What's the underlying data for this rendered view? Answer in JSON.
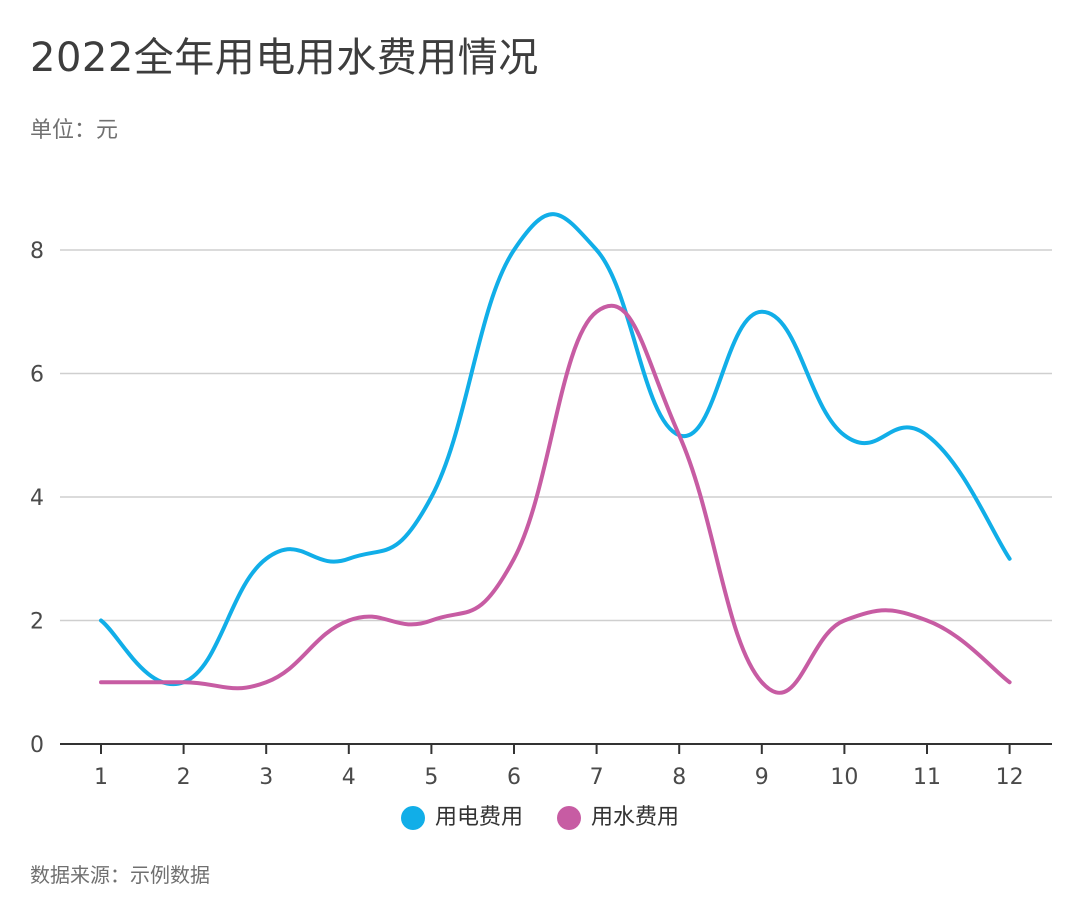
{
  "chart": {
    "title": "2022全年用电用水费用情况",
    "subtitle": "单位：元",
    "source": "数据来源：示例数据"
  },
  "chart_data": {
    "type": "line",
    "title": "2022全年用电用水费用情况",
    "subtitle": "单位：元",
    "categories": [
      "1",
      "2",
      "3",
      "4",
      "5",
      "6",
      "7",
      "8",
      "9",
      "10",
      "11",
      "12"
    ],
    "series": [
      {
        "name": "用电费用",
        "color": "#11aee8",
        "values": [
          2,
          1,
          3,
          3,
          4,
          8,
          8,
          5,
          7,
          5,
          5,
          3
        ]
      },
      {
        "name": "用水费用",
        "color": "#c75ca3",
        "values": [
          1,
          1,
          1,
          2,
          2,
          3,
          7,
          5,
          1,
          2,
          2,
          1
        ]
      }
    ],
    "yTicks": [
      0,
      2,
      4,
      6,
      8
    ],
    "ylim": [
      0,
      9
    ],
    "grid": true,
    "legend": "bottom",
    "source": "数据来源：示例数据"
  }
}
